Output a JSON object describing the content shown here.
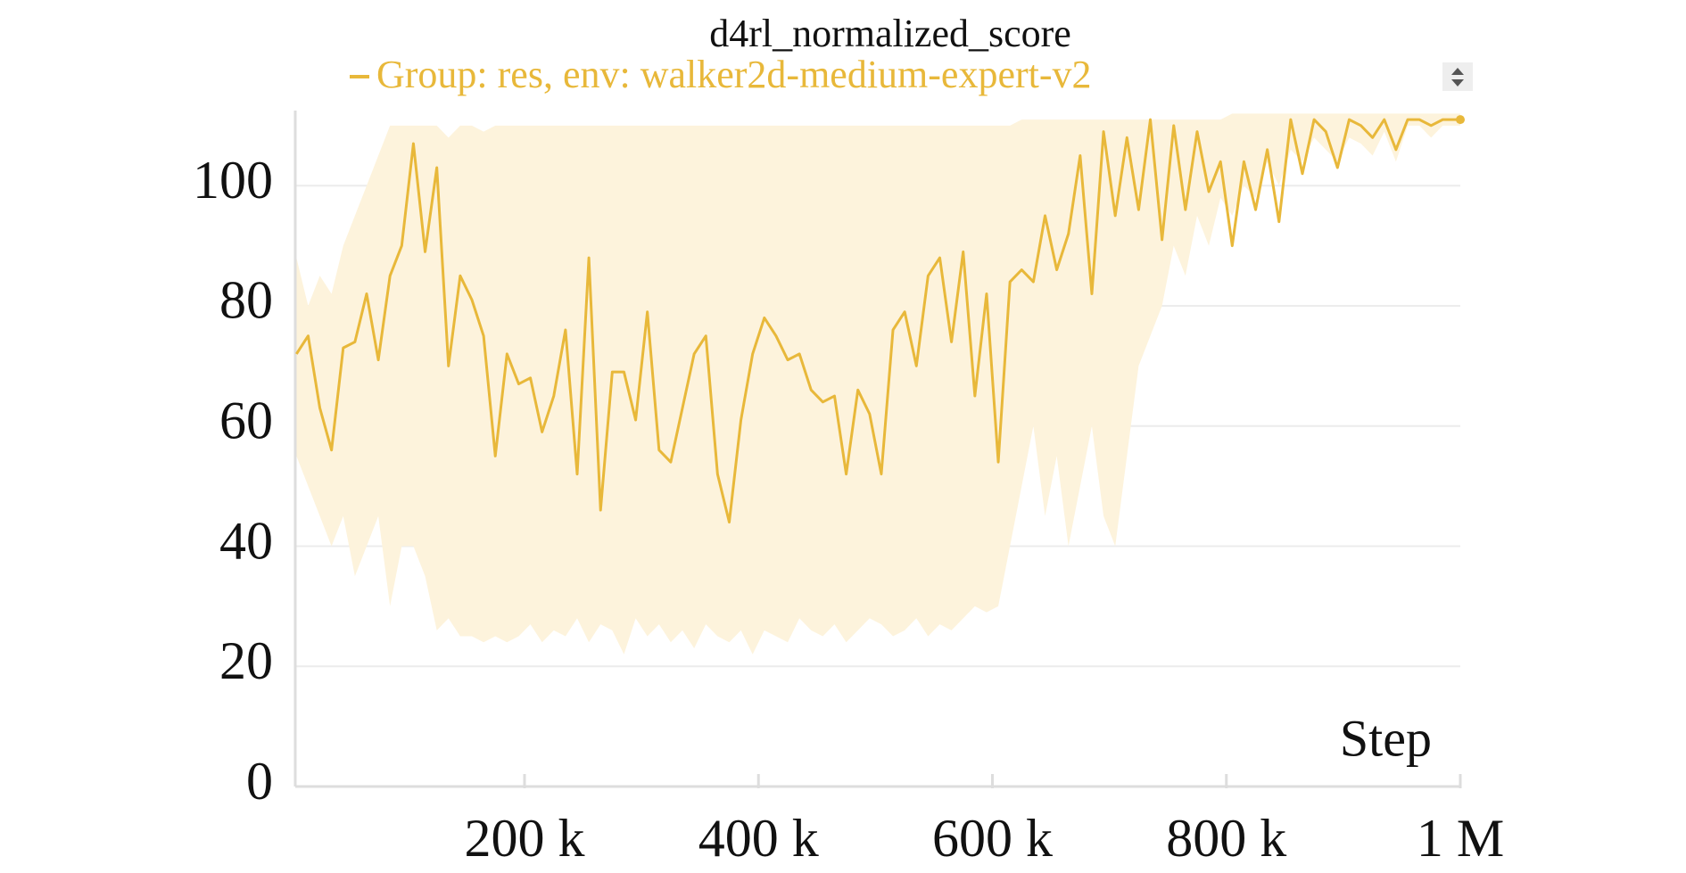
{
  "chart_data": {
    "type": "line",
    "title": "d4rl_normalized_score",
    "x_label": "Step",
    "xlim": [
      4000,
      1000000
    ],
    "ylim": [
      0,
      112.5
    ],
    "xticks": [
      {
        "value": 200000,
        "label": "200 k"
      },
      {
        "value": 400000,
        "label": "400 k"
      },
      {
        "value": 600000,
        "label": "600 k"
      },
      {
        "value": 800000,
        "label": "800 k"
      },
      {
        "value": 1000000,
        "label": "1 M"
      }
    ],
    "yticks": [
      0,
      20,
      40,
      60,
      80,
      100
    ],
    "grid": true,
    "x": [
      5000,
      15000,
      25000,
      35000,
      45000,
      55000,
      65000,
      75000,
      85000,
      95000,
      105000,
      115000,
      125000,
      135000,
      145000,
      155000,
      165000,
      175000,
      185000,
      195000,
      205000,
      215000,
      225000,
      235000,
      245000,
      255000,
      265000,
      275000,
      285000,
      295000,
      305000,
      315000,
      325000,
      335000,
      345000,
      355000,
      365000,
      375000,
      385000,
      395000,
      405000,
      415000,
      425000,
      435000,
      445000,
      455000,
      465000,
      475000,
      485000,
      495000,
      505000,
      515000,
      525000,
      535000,
      545000,
      555000,
      565000,
      575000,
      585000,
      595000,
      605000,
      615000,
      625000,
      635000,
      645000,
      655000,
      665000,
      675000,
      685000,
      695000,
      705000,
      715000,
      725000,
      735000,
      745000,
      755000,
      765000,
      775000,
      785000,
      795000,
      805000,
      815000,
      825000,
      835000,
      845000,
      855000,
      865000,
      875000,
      885000,
      895000,
      905000,
      915000,
      925000,
      935000,
      945000,
      955000,
      965000,
      975000,
      985000,
      995000,
      1000000
    ],
    "series": [
      {
        "name": "Group: res, env: walker2d-medium-expert-v2",
        "color": "#e8b83a",
        "values": [
          72,
          75,
          63,
          56,
          73,
          74,
          82,
          71,
          85,
          90,
          107,
          89,
          103,
          70,
          85,
          81,
          75,
          55,
          72,
          67,
          68,
          59,
          65,
          76,
          52,
          88,
          46,
          69,
          69,
          61,
          79,
          56,
          54,
          63,
          72,
          75,
          52,
          44,
          61,
          72,
          78,
          75,
          71,
          72,
          66,
          64,
          65,
          52,
          66,
          62,
          52,
          76,
          79,
          70,
          85,
          88,
          74,
          89,
          65,
          82,
          54,
          84,
          86,
          84,
          95,
          86,
          92,
          105,
          82,
          109,
          95,
          108,
          96,
          111,
          91,
          110,
          96,
          109,
          99,
          104,
          90,
          104,
          96,
          106,
          94,
          111,
          102,
          111,
          109,
          103,
          111,
          110,
          108,
          111,
          106,
          111,
          111,
          110,
          111,
          111,
          111
        ]
      }
    ],
    "band": {
      "color": "#fdf3dc",
      "upper": [
        88,
        80,
        85,
        82,
        90,
        95,
        100,
        105,
        110,
        110,
        110,
        110,
        110,
        108,
        110,
        110,
        109,
        110,
        110,
        110,
        110,
        110,
        110,
        110,
        110,
        110,
        110,
        110,
        110,
        110,
        110,
        110,
        110,
        110,
        110,
        110,
        110,
        110,
        110,
        110,
        110,
        110,
        110,
        110,
        110,
        110,
        110,
        110,
        110,
        110,
        110,
        110,
        110,
        110,
        110,
        110,
        110,
        110,
        110,
        110,
        110,
        110,
        111,
        111,
        111,
        111,
        111,
        111,
        111,
        111,
        111,
        111,
        111,
        111,
        111,
        111,
        111,
        111,
        111,
        111,
        112,
        112,
        112,
        112,
        112,
        112,
        112,
        112,
        112,
        112,
        112,
        112,
        112,
        112,
        112,
        112,
        112,
        112,
        112,
        112,
        112
      ],
      "lower": [
        55,
        50,
        45,
        40,
        45,
        35,
        40,
        45,
        30,
        40,
        40,
        35,
        26,
        28,
        25,
        25,
        24,
        25,
        24,
        25,
        27,
        24,
        26,
        25,
        28,
        24,
        27,
        26,
        22,
        28,
        25,
        27,
        24,
        26,
        23,
        27,
        25,
        24,
        26,
        22,
        26,
        25,
        24,
        28,
        26,
        25,
        27,
        24,
        26,
        28,
        27,
        25,
        26,
        28,
        25,
        27,
        26,
        28,
        30,
        29,
        30,
        40,
        50,
        60,
        45,
        55,
        40,
        50,
        60,
        45,
        40,
        55,
        70,
        75,
        80,
        90,
        85,
        95,
        90,
        98,
        95,
        100,
        98,
        104,
        100,
        106,
        104,
        108,
        106,
        104,
        108,
        107,
        105,
        109,
        104,
        110,
        110,
        108,
        110,
        110,
        110
      ]
    }
  }
}
